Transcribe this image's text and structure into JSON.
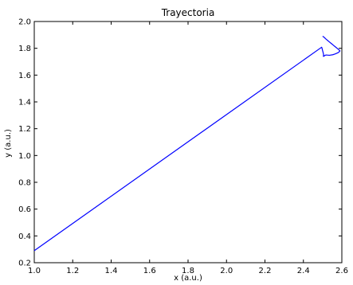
{
  "chart_data": {
    "type": "line",
    "title": "Trayectoria",
    "xlabel": "x (a.u.)",
    "ylabel": "y (a.u.)",
    "xlim": [
      1.0,
      2.6
    ],
    "ylim": [
      0.2,
      2.0
    ],
    "xticks": [
      "1.0",
      "1.2",
      "1.4",
      "1.6",
      "1.8",
      "2.0",
      "2.2",
      "2.4",
      "2.6"
    ],
    "yticks": [
      "0.2",
      "0.4",
      "0.6",
      "0.8",
      "1.0",
      "1.2",
      "1.4",
      "1.6",
      "1.8",
      "2.0"
    ],
    "grid": false,
    "line_color": "#0000ff",
    "series": [
      {
        "x": [
          1.0,
          2.495,
          2.497,
          2.5,
          2.503,
          2.505,
          2.504,
          2.508,
          2.512,
          2.518,
          2.535,
          2.553,
          2.563,
          2.572,
          2.581,
          2.587,
          2.59,
          2.587,
          2.578,
          2.567,
          2.556,
          2.545,
          2.534,
          2.523,
          2.515,
          2.508,
          2.5
        ],
        "y": [
          0.29,
          1.808,
          1.8,
          1.782,
          1.766,
          1.752,
          1.74,
          1.742,
          1.747,
          1.75,
          1.748,
          1.752,
          1.757,
          1.762,
          1.768,
          1.775,
          1.78,
          1.786,
          1.797,
          1.81,
          1.823,
          1.836,
          1.849,
          1.862,
          1.872,
          1.882,
          1.89
        ]
      }
    ]
  }
}
